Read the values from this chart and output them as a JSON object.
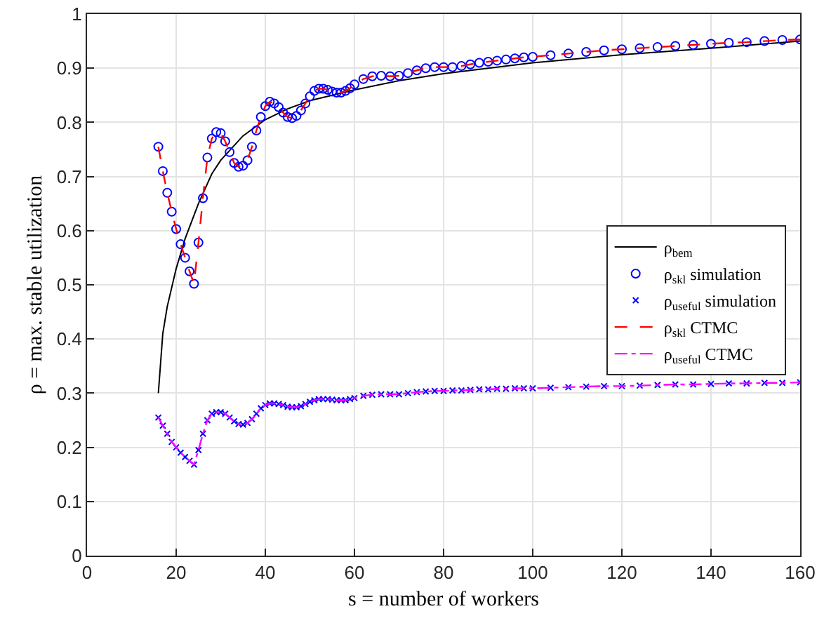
{
  "chart_data": {
    "type": "line",
    "xlabel": "s = number of workers",
    "ylabel": "ρ = max. stable utilization",
    "x": [
      16,
      17,
      18,
      19,
      20,
      21,
      22,
      23,
      24,
      25,
      26,
      27,
      28,
      29,
      30,
      31,
      32,
      33,
      34,
      35,
      36,
      37,
      38,
      39,
      40,
      41,
      42,
      43,
      44,
      45,
      46,
      47,
      48,
      49,
      50,
      51,
      52,
      53,
      54,
      55,
      56,
      57,
      58,
      59,
      60,
      62,
      64,
      66,
      68,
      70,
      72,
      74,
      76,
      78,
      80,
      82,
      84,
      86,
      88,
      90,
      92,
      94,
      96,
      98,
      100,
      104,
      108,
      112,
      116,
      120,
      124,
      128,
      132,
      136,
      140,
      144,
      148,
      152,
      156,
      160
    ],
    "xlim": [
      0,
      160
    ],
    "xticks": [
      0,
      20,
      40,
      60,
      80,
      100,
      120,
      140,
      160
    ],
    "ylim": [
      0,
      1
    ],
    "yticks": [
      0,
      0.1,
      0.2,
      0.3,
      0.4,
      0.5,
      0.6,
      0.7,
      0.8,
      0.9,
      1
    ],
    "grid": true,
    "legend": "right",
    "series": [
      {
        "name": "ρ$_{bem}$",
        "color": "#000000",
        "marker": "none",
        "line_style": "solid",
        "x": [
          16,
          17,
          18,
          20,
          22,
          25,
          28,
          30,
          35,
          40,
          45,
          50,
          60,
          70,
          80,
          100,
          120,
          140,
          160
        ],
        "values": [
          0.3,
          0.41,
          0.46,
          0.53,
          0.585,
          0.65,
          0.705,
          0.73,
          0.775,
          0.805,
          0.825,
          0.84,
          0.86,
          0.877,
          0.89,
          0.91,
          0.925,
          0.937,
          0.95
        ]
      },
      {
        "name": "ρ$_{skl}$ simulation",
        "type": "scatter",
        "color": "#0000ff",
        "marker": "circle",
        "values": [
          0.755,
          0.71,
          0.67,
          0.635,
          0.603,
          0.575,
          0.55,
          0.525,
          0.502,
          0.578,
          0.66,
          0.735,
          0.77,
          0.782,
          0.78,
          0.765,
          0.745,
          0.725,
          0.718,
          0.72,
          0.73,
          0.755,
          0.785,
          0.81,
          0.83,
          0.838,
          0.835,
          0.828,
          0.818,
          0.81,
          0.808,
          0.812,
          0.822,
          0.835,
          0.848,
          0.858,
          0.862,
          0.862,
          0.86,
          0.857,
          0.855,
          0.855,
          0.858,
          0.863,
          0.87,
          0.88,
          0.885,
          0.886,
          0.885,
          0.886,
          0.891,
          0.896,
          0.9,
          0.902,
          0.902,
          0.902,
          0.904,
          0.907,
          0.91,
          0.912,
          0.914,
          0.916,
          0.918,
          0.92,
          0.921,
          0.924,
          0.927,
          0.93,
          0.933,
          0.935,
          0.937,
          0.939,
          0.941,
          0.943,
          0.945,
          0.947,
          0.948,
          0.95,
          0.952,
          0.953
        ]
      },
      {
        "name": "ρ$_{useful}$ simulation",
        "type": "scatter",
        "color": "#0000ff",
        "marker": "cross",
        "values": [
          0.255,
          0.24,
          0.225,
          0.21,
          0.2,
          0.19,
          0.182,
          0.175,
          0.168,
          0.195,
          0.225,
          0.25,
          0.262,
          0.265,
          0.265,
          0.262,
          0.255,
          0.248,
          0.243,
          0.242,
          0.245,
          0.252,
          0.262,
          0.272,
          0.278,
          0.281,
          0.281,
          0.28,
          0.278,
          0.275,
          0.274,
          0.274,
          0.276,
          0.28,
          0.284,
          0.287,
          0.289,
          0.289,
          0.289,
          0.288,
          0.287,
          0.287,
          0.287,
          0.289,
          0.291,
          0.295,
          0.297,
          0.298,
          0.298,
          0.298,
          0.3,
          0.302,
          0.303,
          0.304,
          0.304,
          0.305,
          0.305,
          0.306,
          0.307,
          0.307,
          0.308,
          0.308,
          0.309,
          0.309,
          0.309,
          0.31,
          0.311,
          0.312,
          0.313,
          0.313,
          0.314,
          0.315,
          0.316,
          0.316,
          0.317,
          0.318,
          0.318,
          0.319,
          0.319,
          0.32
        ]
      },
      {
        "name": "ρ$_{skl}$ CTMC",
        "color": "#ff0000",
        "marker": "none",
        "line_style": "dashed",
        "values": [
          0.755,
          0.71,
          0.67,
          0.635,
          0.603,
          0.575,
          0.55,
          0.525,
          0.502,
          0.578,
          0.66,
          0.735,
          0.77,
          0.782,
          0.78,
          0.765,
          0.745,
          0.725,
          0.718,
          0.72,
          0.73,
          0.755,
          0.785,
          0.81,
          0.83,
          0.838,
          0.835,
          0.828,
          0.818,
          0.81,
          0.808,
          0.812,
          0.822,
          0.835,
          0.848,
          0.858,
          0.862,
          0.862,
          0.86,
          0.857,
          0.855,
          0.855,
          0.858,
          0.863,
          0.87,
          0.88,
          0.885,
          0.886,
          0.885,
          0.886,
          0.891,
          0.896,
          0.9,
          0.902,
          0.902,
          0.902,
          0.904,
          0.907,
          0.91,
          0.912,
          0.914,
          0.916,
          0.918,
          0.92,
          0.921,
          0.924,
          0.927,
          0.93,
          0.933,
          0.935,
          0.937,
          0.939,
          0.941,
          0.943,
          0.945,
          0.947,
          0.948,
          0.95,
          0.952,
          0.953
        ]
      },
      {
        "name": "ρ$_{useful}$ CTMC",
        "color": "#ff00ff",
        "marker": "none",
        "line_style": "dashdot",
        "values": [
          0.255,
          0.24,
          0.225,
          0.21,
          0.2,
          0.19,
          0.182,
          0.175,
          0.168,
          0.195,
          0.225,
          0.25,
          0.262,
          0.265,
          0.265,
          0.262,
          0.255,
          0.248,
          0.243,
          0.242,
          0.245,
          0.252,
          0.262,
          0.272,
          0.278,
          0.281,
          0.281,
          0.28,
          0.278,
          0.275,
          0.274,
          0.274,
          0.276,
          0.28,
          0.284,
          0.287,
          0.289,
          0.289,
          0.289,
          0.288,
          0.287,
          0.287,
          0.287,
          0.289,
          0.291,
          0.295,
          0.297,
          0.298,
          0.298,
          0.298,
          0.3,
          0.302,
          0.303,
          0.304,
          0.304,
          0.305,
          0.305,
          0.306,
          0.307,
          0.307,
          0.308,
          0.308,
          0.309,
          0.309,
          0.309,
          0.31,
          0.311,
          0.312,
          0.313,
          0.313,
          0.314,
          0.315,
          0.316,
          0.316,
          0.317,
          0.318,
          0.318,
          0.319,
          0.319,
          0.32
        ]
      }
    ]
  }
}
